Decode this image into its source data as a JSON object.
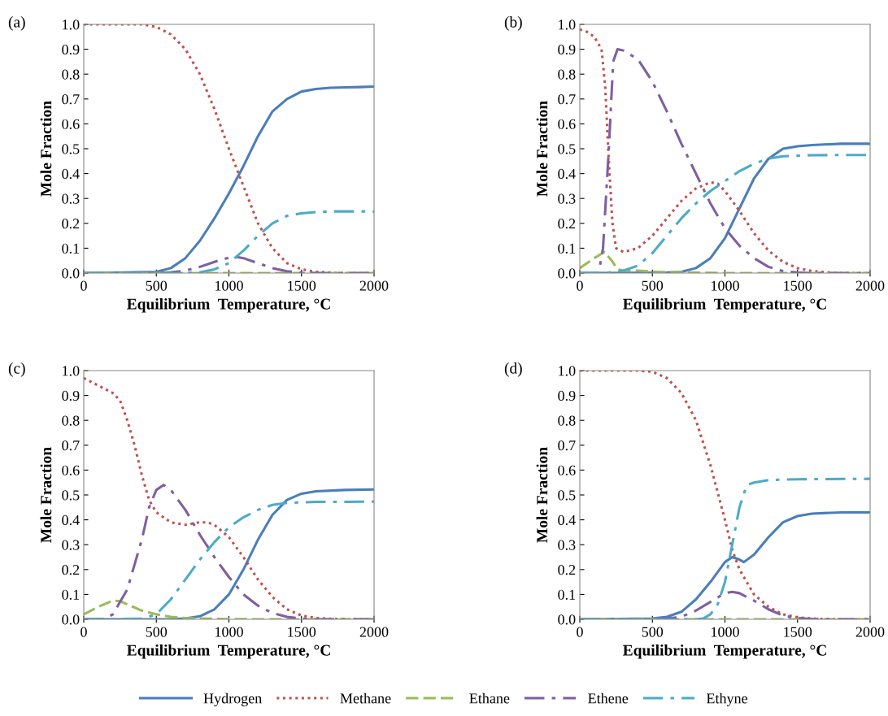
{
  "chart_data": [
    {
      "type": "line",
      "title": "(a)",
      "xlabel": "Equilibrium  Temperature, °C",
      "ylabel": "Mole Fraction",
      "xlim": [
        0,
        2000
      ],
      "ylim": [
        0,
        1
      ],
      "xticks": [
        0,
        500,
        1000,
        1500,
        2000
      ],
      "yticks": [
        {
          "value": 0,
          "label": "0.0"
        },
        {
          "value": 0.1,
          "label": "0.1"
        },
        {
          "value": 0.2,
          "label": "0.2"
        },
        {
          "value": 0.3,
          "label": "0.3"
        },
        {
          "value": 0.4,
          "label": "0.4"
        },
        {
          "value": 0.5,
          "label": "0.5"
        },
        {
          "value": 0.6,
          "label": "0.6"
        },
        {
          "value": 0.7,
          "label": "0.7"
        },
        {
          "value": 0.8,
          "label": "0.8"
        },
        {
          "value": 0.9,
          "label": "0.9"
        },
        {
          "value": 1,
          "label": "1.0"
        }
      ],
      "grid": false,
      "legend": "bottom",
      "series": [
        {
          "name": "Hydrogen",
          "color": "#4a7ebb",
          "line_style": "solid",
          "x": [
            0,
            500,
            600,
            700,
            800,
            900,
            1000,
            1100,
            1200,
            1300,
            1400,
            1500,
            1600,
            1700,
            1800,
            1900,
            2000
          ],
          "values": [
            0,
            0.005,
            0.02,
            0.06,
            0.13,
            0.22,
            0.32,
            0.43,
            0.55,
            0.65,
            0.7,
            0.73,
            0.74,
            0.745,
            0.747,
            0.748,
            0.75
          ]
        },
        {
          "name": "Methane",
          "color": "#c0504d",
          "line_style": "dotted",
          "x": [
            0,
            400,
            500,
            600,
            700,
            800,
            900,
            1000,
            1100,
            1200,
            1300,
            1400,
            1500,
            1600,
            1700,
            1800,
            2000
          ],
          "values": [
            1,
            1,
            0.99,
            0.96,
            0.9,
            0.8,
            0.66,
            0.5,
            0.35,
            0.2,
            0.1,
            0.04,
            0.015,
            0.005,
            0.002,
            0,
            0
          ]
        },
        {
          "name": "Ethane",
          "color": "#9bbb59",
          "line_style": "dashed",
          "x": [
            0,
            2000
          ],
          "values": [
            0,
            0
          ]
        },
        {
          "name": "Ethene",
          "color": "#7f5fa0",
          "line_style": "dashdot",
          "x": [
            0,
            500,
            600,
            700,
            800,
            900,
            1000,
            1050,
            1100,
            1200,
            1300,
            1400,
            1500,
            1600,
            2000
          ],
          "values": [
            0,
            0,
            0.003,
            0.01,
            0.025,
            0.045,
            0.062,
            0.065,
            0.06,
            0.04,
            0.02,
            0.007,
            0.002,
            0,
            0
          ]
        },
        {
          "name": "Ethyne",
          "color": "#4bacc6",
          "line_style": "dashdot",
          "x": [
            0,
            700,
            800,
            900,
            1000,
            1100,
            1200,
            1300,
            1400,
            1500,
            1600,
            1700,
            2000
          ],
          "values": [
            0,
            0,
            0.003,
            0.015,
            0.04,
            0.09,
            0.15,
            0.2,
            0.23,
            0.24,
            0.245,
            0.248,
            0.248
          ]
        }
      ]
    },
    {
      "type": "line",
      "title": "(b)",
      "xlabel": "Equilibrium  Temperature, °C",
      "ylabel": "Mole Fraction",
      "xlim": [
        0,
        2000
      ],
      "ylim": [
        0,
        1
      ],
      "xticks": [
        0,
        500,
        1000,
        1500,
        2000
      ],
      "yticks": [
        {
          "value": 0,
          "label": "0.0"
        },
        {
          "value": 0.1,
          "label": "0.1"
        },
        {
          "value": 0.2,
          "label": "0.2"
        },
        {
          "value": 0.3,
          "label": "0.3"
        },
        {
          "value": 0.4,
          "label": "0.4"
        },
        {
          "value": 0.5,
          "label": "0.5"
        },
        {
          "value": 0.6,
          "label": "0.6"
        },
        {
          "value": 0.7,
          "label": "0.7"
        },
        {
          "value": 0.8,
          "label": "0.8"
        },
        {
          "value": 0.9,
          "label": "0.9"
        },
        {
          "value": 1,
          "label": "1.0"
        }
      ],
      "grid": false,
      "legend": false,
      "series": [
        {
          "color": "#4a7ebb",
          "line_style": "solid",
          "x": [
            0,
            600,
            700,
            800,
            900,
            1000,
            1100,
            1200,
            1300,
            1400,
            1500,
            1600,
            1800,
            2000
          ],
          "values": [
            0,
            0.002,
            0.005,
            0.02,
            0.06,
            0.14,
            0.26,
            0.38,
            0.46,
            0.5,
            0.51,
            0.515,
            0.52,
            0.52
          ]
        },
        {
          "color": "#c0504d",
          "line_style": "dotted",
          "x": [
            0,
            50,
            100,
            150,
            175,
            200,
            225,
            250,
            300,
            400,
            500,
            600,
            700,
            800,
            900,
            950,
            1000,
            1100,
            1200,
            1300,
            1400,
            1500,
            1600,
            1700,
            1800,
            2000
          ],
          "values": [
            0.98,
            0.97,
            0.95,
            0.9,
            0.75,
            0.45,
            0.2,
            0.1,
            0.085,
            0.1,
            0.15,
            0.22,
            0.29,
            0.34,
            0.365,
            0.36,
            0.33,
            0.25,
            0.16,
            0.09,
            0.045,
            0.02,
            0.008,
            0.003,
            0,
            0
          ]
        },
        {
          "color": "#9bbb59",
          "line_style": "dashed",
          "x": [
            0,
            100,
            170,
            220,
            260,
            300,
            400,
            500,
            600,
            800,
            1000,
            2000
          ],
          "values": [
            0.02,
            0.06,
            0.085,
            0.05,
            0.015,
            0.01,
            0.01,
            0.006,
            0.004,
            0.002,
            0,
            0
          ]
        },
        {
          "color": "#7f5fa0",
          "line_style": "dashdot",
          "x": [
            0,
            130,
            160,
            200,
            230,
            260,
            300,
            400,
            500,
            600,
            700,
            800,
            900,
            1000,
            1100,
            1200,
            1300,
            1400,
            1500,
            1600,
            2000
          ],
          "values": [
            0,
            0,
            0.1,
            0.5,
            0.85,
            0.9,
            0.895,
            0.86,
            0.77,
            0.65,
            0.52,
            0.4,
            0.28,
            0.18,
            0.11,
            0.06,
            0.025,
            0.008,
            0.002,
            0,
            0
          ]
        },
        {
          "color": "#4bacc6",
          "line_style": "dashdot",
          "x": [
            0,
            200,
            300,
            400,
            500,
            600,
            700,
            800,
            900,
            1000,
            1100,
            1200,
            1300,
            1400,
            1600,
            2000
          ],
          "values": [
            0,
            0.002,
            0.01,
            0.03,
            0.08,
            0.15,
            0.22,
            0.28,
            0.33,
            0.37,
            0.41,
            0.44,
            0.46,
            0.47,
            0.474,
            0.475
          ]
        }
      ]
    },
    {
      "type": "line",
      "title": "(c)",
      "xlabel": "Equilibrium  Temperature, °C",
      "ylabel": "Mole Fraction",
      "xlim": [
        0,
        2000
      ],
      "ylim": [
        0,
        1
      ],
      "xticks": [
        0,
        500,
        1000,
        1500,
        2000
      ],
      "yticks": [
        {
          "value": 0,
          "label": "0.0"
        },
        {
          "value": 0.1,
          "label": "0.1"
        },
        {
          "value": 0.2,
          "label": "0.2"
        },
        {
          "value": 0.3,
          "label": "0.3"
        },
        {
          "value": 0.4,
          "label": "0.4"
        },
        {
          "value": 0.5,
          "label": "0.5"
        },
        {
          "value": 0.6,
          "label": "0.6"
        },
        {
          "value": 0.7,
          "label": "0.7"
        },
        {
          "value": 0.8,
          "label": "0.8"
        },
        {
          "value": 0.9,
          "label": "0.9"
        },
        {
          "value": 1,
          "label": "1.0"
        }
      ],
      "grid": false,
      "legend": false,
      "series": [
        {
          "color": "#4a7ebb",
          "line_style": "solid",
          "x": [
            0,
            600,
            700,
            800,
            900,
            1000,
            1100,
            1200,
            1300,
            1400,
            1500,
            1600,
            1800,
            2000
          ],
          "values": [
            0,
            0.001,
            0.003,
            0.012,
            0.04,
            0.1,
            0.2,
            0.32,
            0.42,
            0.48,
            0.505,
            0.515,
            0.52,
            0.522
          ]
        },
        {
          "color": "#c0504d",
          "line_style": "dotted",
          "x": [
            0,
            100,
            200,
            250,
            300,
            350,
            400,
            450,
            500,
            600,
            700,
            800,
            850,
            900,
            1000,
            1100,
            1200,
            1300,
            1400,
            1500,
            1600,
            1700,
            1800,
            2000
          ],
          "values": [
            0.97,
            0.94,
            0.91,
            0.88,
            0.8,
            0.7,
            0.58,
            0.48,
            0.43,
            0.39,
            0.38,
            0.39,
            0.39,
            0.38,
            0.33,
            0.25,
            0.16,
            0.09,
            0.04,
            0.015,
            0.005,
            0.002,
            0,
            0
          ]
        },
        {
          "color": "#9bbb59",
          "line_style": "dashed",
          "x": [
            0,
            100,
            200,
            250,
            300,
            400,
            500,
            600,
            700,
            800,
            1000,
            1200,
            2000
          ],
          "values": [
            0.02,
            0.05,
            0.075,
            0.073,
            0.06,
            0.035,
            0.02,
            0.01,
            0.005,
            0.003,
            0.001,
            0,
            0
          ]
        },
        {
          "color": "#7f5fa0",
          "line_style": "dashdot",
          "x": [
            0,
            150,
            200,
            300,
            400,
            450,
            500,
            550,
            600,
            700,
            800,
            900,
            1000,
            1100,
            1200,
            1300,
            1400,
            1500,
            1600,
            2000
          ],
          "values": [
            0,
            0.002,
            0.02,
            0.12,
            0.32,
            0.45,
            0.52,
            0.54,
            0.52,
            0.44,
            0.34,
            0.25,
            0.17,
            0.1,
            0.055,
            0.025,
            0.01,
            0.003,
            0,
            0
          ]
        },
        {
          "color": "#4bacc6",
          "line_style": "dashdot",
          "x": [
            0,
            400,
            500,
            600,
            700,
            800,
            900,
            1000,
            1100,
            1200,
            1300,
            1400,
            1600,
            2000
          ],
          "values": [
            0,
            0.002,
            0.02,
            0.08,
            0.16,
            0.24,
            0.31,
            0.37,
            0.41,
            0.44,
            0.46,
            0.468,
            0.472,
            0.473
          ]
        }
      ]
    },
    {
      "type": "line",
      "title": "(d)",
      "xlabel": "Equilibrium  Temperature, °C",
      "ylabel": "Mole Fraction",
      "xlim": [
        0,
        2000
      ],
      "ylim": [
        0,
        1
      ],
      "xticks": [
        0,
        500,
        1000,
        1500,
        2000
      ],
      "yticks": [
        {
          "value": 0,
          "label": "0.0"
        },
        {
          "value": 0.1,
          "label": "0.1"
        },
        {
          "value": 0.2,
          "label": "0.2"
        },
        {
          "value": 0.3,
          "label": "0.3"
        },
        {
          "value": 0.4,
          "label": "0.4"
        },
        {
          "value": 0.5,
          "label": "0.5"
        },
        {
          "value": 0.6,
          "label": "0.6"
        },
        {
          "value": 0.7,
          "label": "0.7"
        },
        {
          "value": 0.8,
          "label": "0.8"
        },
        {
          "value": 0.9,
          "label": "0.9"
        },
        {
          "value": 1,
          "label": "1.0"
        }
      ],
      "grid": false,
      "legend": false,
      "series": [
        {
          "color": "#4a7ebb",
          "line_style": "solid",
          "x": [
            0,
            500,
            600,
            700,
            800,
            900,
            1000,
            1050,
            1100,
            1130,
            1200,
            1300,
            1400,
            1500,
            1600,
            1800,
            2000
          ],
          "values": [
            0,
            0.003,
            0.01,
            0.03,
            0.08,
            0.15,
            0.23,
            0.25,
            0.24,
            0.23,
            0.26,
            0.33,
            0.39,
            0.415,
            0.425,
            0.43,
            0.43
          ]
        },
        {
          "color": "#c0504d",
          "line_style": "dotted",
          "x": [
            0,
            400,
            500,
            600,
            700,
            800,
            900,
            1000,
            1050,
            1100,
            1200,
            1300,
            1400,
            1500,
            1600,
            1700,
            1800,
            2000
          ],
          "values": [
            1,
            1,
            0.995,
            0.97,
            0.91,
            0.8,
            0.62,
            0.4,
            0.28,
            0.2,
            0.1,
            0.05,
            0.02,
            0.008,
            0.003,
            0.001,
            0,
            0
          ]
        },
        {
          "color": "#9bbb59",
          "line_style": "dashed",
          "x": [
            0,
            2000
          ],
          "values": [
            0,
            0
          ]
        },
        {
          "color": "#7f5fa0",
          "line_style": "dashdot",
          "x": [
            0,
            500,
            600,
            700,
            800,
            900,
            1000,
            1050,
            1100,
            1200,
            1300,
            1400,
            1500,
            1600,
            1700,
            2000
          ],
          "values": [
            0,
            0,
            0.003,
            0.01,
            0.035,
            0.07,
            0.105,
            0.11,
            0.105,
            0.075,
            0.04,
            0.015,
            0.005,
            0.001,
            0,
            0
          ]
        },
        {
          "color": "#4bacc6",
          "line_style": "dashdot",
          "x": [
            0,
            800,
            850,
            900,
            950,
            1000,
            1050,
            1100,
            1150,
            1200,
            1300,
            1500,
            2000
          ],
          "values": [
            0,
            0,
            0.003,
            0.02,
            0.06,
            0.15,
            0.3,
            0.45,
            0.54,
            0.55,
            0.56,
            0.563,
            0.565
          ]
        }
      ]
    }
  ]
}
